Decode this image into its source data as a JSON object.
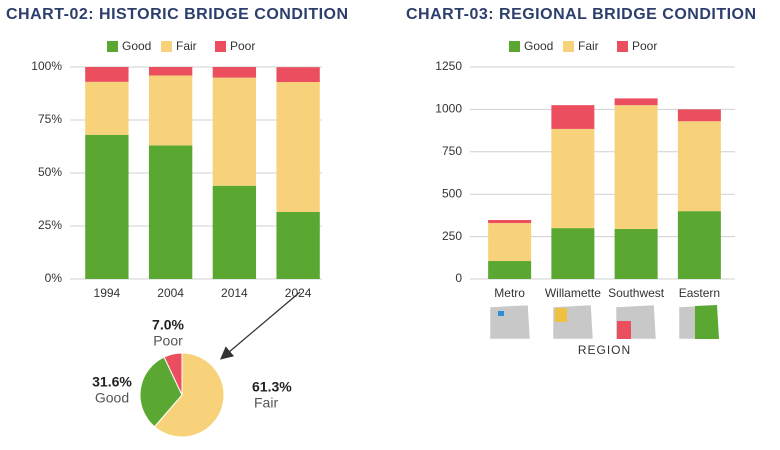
{
  "chart_data": [
    {
      "type": "bar",
      "stacked": true,
      "title": "CHART-02: HISTORIC BRIDGE CONDITION",
      "categories": [
        "1994",
        "2004",
        "2014",
        "2024"
      ],
      "series": [
        {
          "name": "Good",
          "color": "#5aa832",
          "values": [
            68,
            63,
            44,
            31.6
          ]
        },
        {
          "name": "Fair",
          "color": "#f7d27a",
          "values": [
            25,
            33,
            51,
            61.3
          ]
        },
        {
          "name": "Poor",
          "color": "#ea4e5f",
          "values": [
            7,
            4,
            5,
            7.0
          ]
        }
      ],
      "ylim": [
        0,
        100
      ],
      "yticks": [
        {
          "value": 0,
          "label": "0%"
        },
        {
          "value": 25,
          "label": "25%"
        },
        {
          "value": 50,
          "label": "50%"
        },
        {
          "value": 75,
          "label": "75%"
        },
        {
          "value": 100,
          "label": "100%"
        }
      ],
      "grid": true
    },
    {
      "type": "pie",
      "categories": [
        "Fair",
        "Good",
        "Poor"
      ],
      "values": [
        61.3,
        31.6,
        7.0
      ],
      "value_labels": [
        "61.3%",
        "31.6%",
        "7.0%"
      ],
      "colors": [
        "#f7d27a",
        "#5aa832",
        "#ea4e5f"
      ]
    },
    {
      "type": "bar",
      "stacked": true,
      "title": "CHART-03: REGIONAL BRIDGE CONDITION",
      "categories": [
        "Metro",
        "Willamette",
        "Southwest",
        "Eastern"
      ],
      "xlabel": "REGION",
      "series": [
        {
          "name": "Good",
          "color": "#5aa832",
          "values": [
            106,
            300,
            295,
            400
          ]
        },
        {
          "name": "Fair",
          "color": "#f7d27a",
          "values": [
            224,
            585,
            730,
            530
          ]
        },
        {
          "name": "Poor",
          "color": "#ea4e5f",
          "values": [
            18,
            140,
            40,
            70
          ]
        }
      ],
      "ylim": [
        0,
        1250
      ],
      "yticks": [
        0,
        250,
        500,
        750,
        1000,
        1250
      ],
      "grid": true
    }
  ]
}
